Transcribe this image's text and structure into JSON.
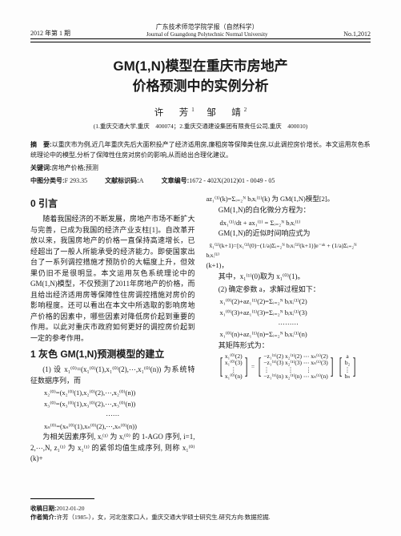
{
  "header": {
    "left": "2012 年第 1 期",
    "journal_zh": "广东技术师范学院学报（自然科学）",
    "journal_en": "Journal of Guangdong Polytechnic Normal University",
    "right": "No.1,2012"
  },
  "title_l1": "GM(1,N)模型在重庆市房地产",
  "title_l2": "价格预测中的实例分析",
  "authors_html": "许　芳¹　邹　靖²",
  "affil": "(1.重庆交通大学,重庆　400074；2.重庆交通建设集团有限责任公司,重庆　400010)",
  "abstract_lbl": "摘　要:",
  "abstract": "以重庆市为例,近几年重庆先后大面积投产了经济适用房,廉租房等保障类住房,以此调控房价增长。本文运用灰色系统理论中的模型,分析了保障性住房对房价的影响,从而给出合理化建议。",
  "kw_lbl": "关键词:",
  "keywords": "房地产价格;预测",
  "clc_lbl": "中图分类号:",
  "clc": "F 293.35",
  "doc_code_lbl": "文献标识码:",
  "doc_code": "A",
  "article_id_lbl": "文章编号:",
  "article_id": "1672 - 402X(2012)01 - 0049 - 05",
  "sec0_title": "0 引言",
  "sec0_para": "随着我国经济的不断发展，房地产市场不断扩大与完善，已成为我国的经济产业支柱[1]。自改革开放以来，我国房地产的价格一直保持高速增长，已经超出了一般人所能承受的经济能力。即使国家出台了一系列调控措施才预防价的大幅度上升，但效果仍旧不是很明显。本文运用灰色系统理论中的GM(1,N)模型，不仅预测了2011年房地产的价格，而且给出经济适用房等保障性住房调控措施对房价的影响程度。还可以看出在本文中所选取的影响房地产价格的因素中，哪些因素对降低房价起到重要的作用。以此对重庆市政府如何更好的调控房价起到一定的参考作用。",
  "sec1_title": "1 灰色 GM(1,N)预测模型的建立",
  "sec1_p1": "(1) 设 x₁⁽⁰⁾=(x₁⁽⁰⁾(1),x₁⁽⁰⁾(2),⋯,x₁⁽⁰⁾(n)) 为系统特征数据序列，而",
  "eq_seq1": "x₂⁽⁰⁾=(x₂⁽⁰⁾(1),x₂⁽⁰⁾(2),⋯,x₂⁽⁰⁾(n))",
  "eq_seq2": "x₃⁽⁰⁾=(x₃⁽⁰⁾(1),x₃⁽⁰⁾(2),⋯,x₃⁽⁰⁾(n))",
  "eq_dots": "⋯⋯",
  "eq_seqn": "xₙ⁽⁰⁾=(xₙ⁽⁰⁾(1),xₙ⁽⁰⁾(2),⋯,xₙ⁽⁰⁾(n))",
  "sec1_p2": "为相关因素序列, xᵢ⁽¹⁾ 为 xᵢ⁽⁰⁾ 的 1-AGO 序列, i=1, 2,⋯,N, z₁⁽¹⁾ 为 x₁⁽¹⁾ 的紧邻均值生成序列, 则称 x₁⁽⁰⁾(k)+",
  "r_eq1": "az₁⁽¹⁾(k)=Σᵢ₌₂ᴺ bᵢxᵢ⁽¹⁾(k) 为 GM(1,N)模型[2]。",
  "r_line2": "GM(1,N)的白化微分方程为：",
  "r_eq2": "dx₁⁽¹⁾/dt + ax₁⁽¹⁾ = Σᵢ₌₂ᴺ bᵢxᵢ⁽¹⁾",
  "r_line3": "GM(1,N)的近似时间响应式为",
  "r_eq3": "x̂₁⁽¹⁾(k+1)=[x₁⁽¹⁾(0)−(1/a)Σᵢ₌₂ᴺ bᵢxᵢ⁽¹⁾(k+1)]e⁻ᵃᵏ + (1/a)Σᵢ₌₂ᴺ bᵢxᵢ⁽¹⁾",
  "r_line3b": "(k+1)，",
  "r_line4": "其中，x₁⁽¹⁾(0)取为 x₁⁽⁰⁾(1)。",
  "r_line5": "(2) 确定参数 a，求解过程如下：",
  "r_eqA": "x₁⁽⁰⁾(2)+az₁⁽¹⁾(2)=Σᵢ₌₂ᴺ bᵢxᵢ⁽¹⁾(2)",
  "r_eqB": "x₁⁽⁰⁾(3)+az₁⁽¹⁾(3)=Σᵢ₌₂ᴺ bᵢxᵢ⁽¹⁾(3)",
  "r_dots": "⋯⋯⋯",
  "r_eqC": "x₁⁽⁰⁾(n)+az₁⁽¹⁾(n)=Σᵢ₌₂ᴺ bᵢxᵢ⁽¹⁾(n)",
  "r_line6": "其矩阵形式为：",
  "mat_col1": [
    "x₁⁽⁰⁾(2)",
    "x₁⁽⁰⁾(3)",
    "⋮",
    "x₁⁽⁰⁾(n)"
  ],
  "mat_col2": [
    "−z₁⁽¹⁾(2)  x₂⁽¹⁾(2) ⋯ xₙ⁽¹⁾(2)",
    "−z₁⁽¹⁾(3)  x₂⁽¹⁾(3) ⋯ xₙ⁽¹⁾(3)",
    "⋮　　　⋮　　⋮",
    "−z₁⁽¹⁾(n)  x₂⁽¹⁾(n) ⋯ xₙ⁽¹⁾(n)"
  ],
  "mat_col3": [
    "a",
    "b₂",
    "⋮",
    "bₙ"
  ],
  "footer": {
    "recv_lbl": "收稿日期:",
    "recv": "2012-01-20",
    "auth_lbl": "作者简介:",
    "auth": "许芳（1985-），女，河北张家口人，重庆交通大学硕士研究生.研究方向:数据挖掘."
  }
}
